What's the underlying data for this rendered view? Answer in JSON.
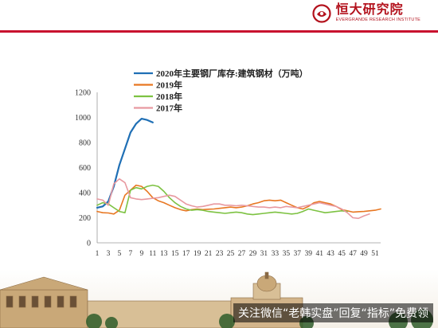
{
  "header": {
    "logo_cn": "恒大研究院",
    "logo_en": "EVERGRANDE RESEARCH INSTITUTE"
  },
  "watermark": {
    "text": "关注微信“老韩实盘”回复“指标”免费领"
  },
  "chart_data": {
    "type": "line",
    "title": "",
    "xlabel": "",
    "ylabel": "",
    "ylim": [
      0,
      1200
    ],
    "yticks": [
      0,
      200,
      400,
      600,
      800,
      1000,
      1200
    ],
    "xlim": [
      1,
      52
    ],
    "xticks": [
      1,
      3,
      5,
      7,
      9,
      11,
      13,
      15,
      17,
      19,
      21,
      23,
      25,
      27,
      29,
      31,
      33,
      35,
      37,
      39,
      41,
      43,
      45,
      47,
      49,
      51
    ],
    "grid": false,
    "legend_position": "top-left",
    "series": [
      {
        "name": "2020年主要钢厂库存:建筑钢材（万吨）",
        "color": "#1f6fb5",
        "x": [
          1,
          2,
          3,
          4,
          5,
          6,
          7,
          8,
          9,
          10,
          11
        ],
        "values": [
          280,
          290,
          330,
          450,
          620,
          750,
          880,
          950,
          990,
          980,
          960
        ]
      },
      {
        "name": "2019年",
        "color": "#e87722",
        "x": [
          1,
          2,
          3,
          4,
          5,
          6,
          7,
          8,
          9,
          10,
          11,
          12,
          13,
          14,
          15,
          16,
          17,
          18,
          19,
          20,
          21,
          22,
          23,
          24,
          25,
          26,
          27,
          28,
          29,
          30,
          31,
          32,
          33,
          34,
          35,
          36,
          37,
          38,
          39,
          40,
          41,
          42,
          43,
          44,
          45,
          46,
          47,
          48,
          49,
          50,
          51,
          52
        ],
        "values": [
          250,
          240,
          238,
          230,
          260,
          380,
          420,
          460,
          450,
          410,
          360,
          335,
          320,
          300,
          280,
          265,
          255,
          265,
          270,
          265,
          268,
          270,
          275,
          280,
          285,
          280,
          285,
          295,
          310,
          320,
          335,
          340,
          335,
          340,
          320,
          300,
          280,
          270,
          290,
          320,
          330,
          320,
          310,
          290,
          265,
          255,
          245,
          248,
          250,
          255,
          260,
          270
        ]
      },
      {
        "name": "2018年",
        "color": "#7dc242",
        "x": [
          1,
          2,
          3,
          4,
          5,
          6,
          7,
          8,
          9,
          10,
          11,
          12,
          13,
          14,
          15,
          16,
          17,
          18,
          19,
          20,
          21,
          22,
          23,
          24,
          25,
          26,
          27,
          28,
          29,
          30,
          31,
          32,
          33,
          34,
          35,
          36,
          37,
          38,
          39,
          40,
          41,
          42,
          43,
          44,
          45,
          46
        ],
        "values": [
          300,
          320,
          310,
          280,
          250,
          240,
          420,
          440,
          430,
          450,
          460,
          450,
          410,
          360,
          320,
          290,
          270,
          260,
          265,
          260,
          250,
          245,
          240,
          235,
          240,
          245,
          240,
          230,
          225,
          230,
          235,
          240,
          245,
          240,
          235,
          230,
          235,
          250,
          270,
          260,
          250,
          240,
          245,
          250,
          255,
          250
        ]
      },
      {
        "name": "2017年",
        "color": "#e899a0",
        "x": [
          1,
          2,
          3,
          4,
          5,
          6,
          7,
          8,
          9,
          10,
          11,
          12,
          13,
          14,
          15,
          16,
          17,
          18,
          19,
          20,
          21,
          22,
          23,
          24,
          25,
          26,
          27,
          28,
          29,
          30,
          31,
          32,
          33,
          34,
          35,
          36,
          37,
          38,
          39,
          40,
          41,
          42,
          43,
          44,
          45,
          46,
          47,
          48,
          49,
          50
        ],
        "values": [
          350,
          340,
          300,
          470,
          510,
          480,
          360,
          350,
          345,
          350,
          355,
          360,
          370,
          380,
          370,
          340,
          310,
          295,
          285,
          290,
          300,
          310,
          310,
          300,
          300,
          295,
          300,
          295,
          290,
          285,
          285,
          280,
          285,
          280,
          290,
          285,
          280,
          290,
          300,
          310,
          320,
          310,
          300,
          290,
          270,
          240,
          200,
          195,
          215,
          230
        ]
      }
    ]
  }
}
